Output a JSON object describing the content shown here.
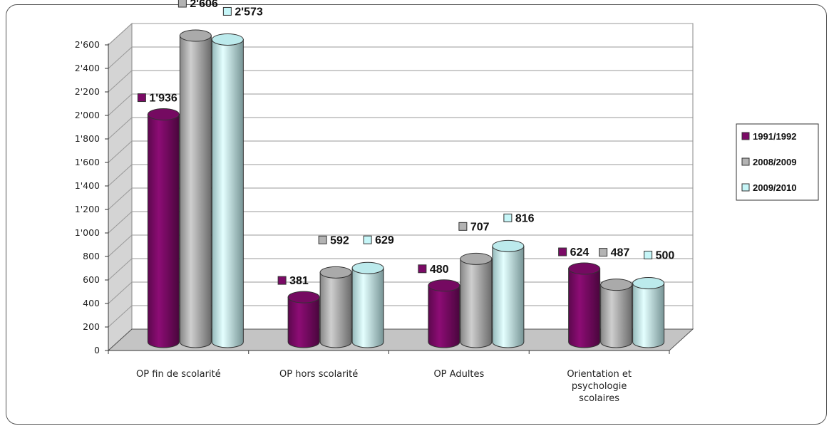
{
  "chart_data": {
    "type": "bar",
    "categories": [
      "OP fin de scolarité",
      "OP hors scolarité",
      "OP Adultes",
      "Orientation et psychologie scolaires"
    ],
    "series": [
      {
        "name": "1991/1992",
        "values": [
          1936,
          381,
          480,
          624
        ],
        "labels": [
          "1'936",
          "381",
          "480",
          "624"
        ],
        "color": "#7b0a66"
      },
      {
        "name": "2008/2009",
        "values": [
          2606,
          592,
          707,
          487
        ],
        "labels": [
          "2'606",
          "592",
          "707",
          "487"
        ],
        "color": "#b3b3b3"
      },
      {
        "name": "2009/2010",
        "values": [
          2573,
          629,
          816,
          500
        ],
        "labels": [
          "2'573",
          "629",
          "816",
          "500"
        ],
        "color": "#c6f6f8"
      }
    ],
    "ylim": [
      0,
      2600
    ],
    "yticks": [
      0,
      200,
      400,
      600,
      800,
      1000,
      1200,
      1400,
      1600,
      1800,
      2000,
      2200,
      2400,
      2600
    ],
    "ytick_labels": [
      "0",
      "200",
      "400",
      "600",
      "800",
      "1'000",
      "1'200",
      "1'400",
      "1'600",
      "1'800",
      "2'000",
      "2'200",
      "2'400",
      "2'600"
    ],
    "grid": true,
    "legend": "right",
    "style": "3d-cylinder",
    "title": "",
    "xlabel": "",
    "ylabel": ""
  }
}
